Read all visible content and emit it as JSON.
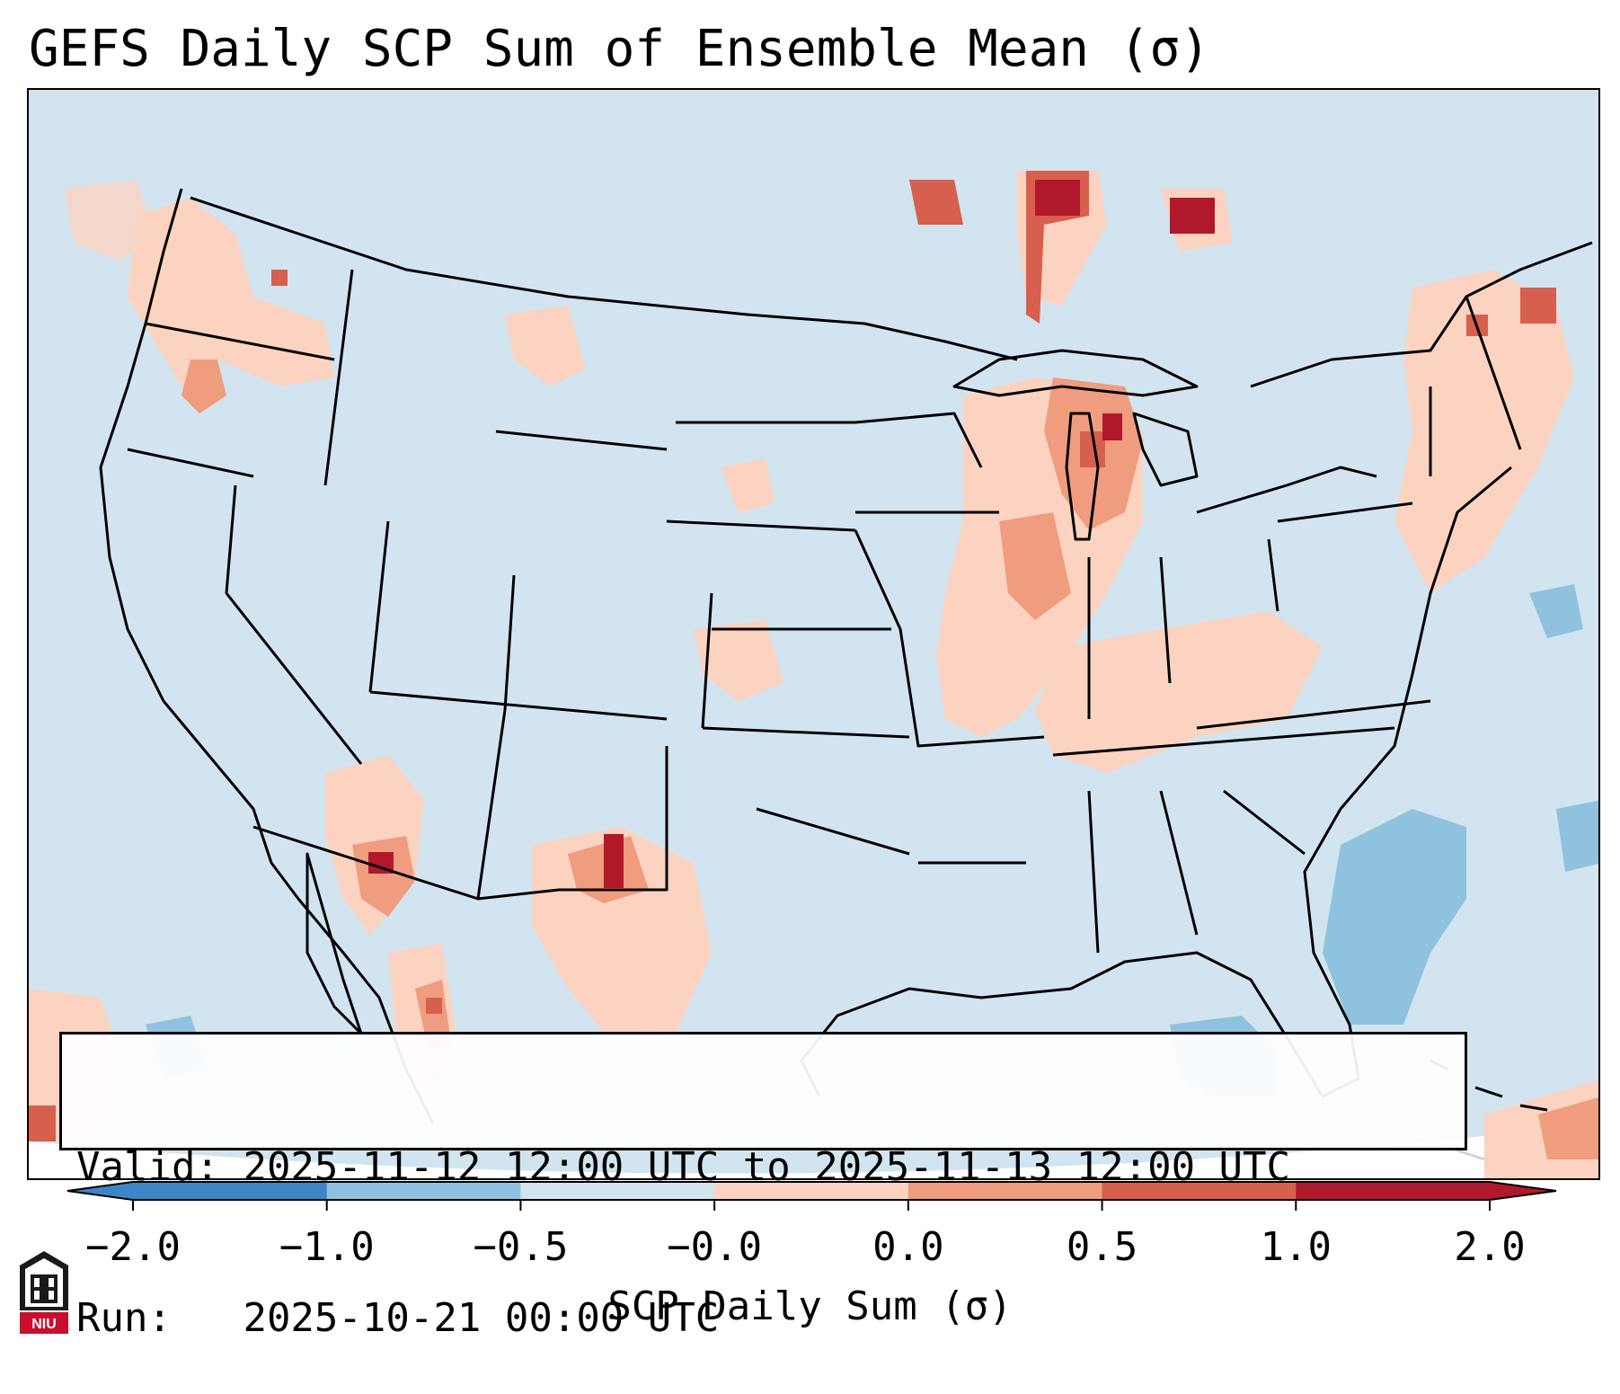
{
  "title": "GEFS Daily SCP Sum of Ensemble Mean (σ)",
  "info": {
    "valid_label": "Valid:",
    "valid_value": "2025-11-12 12:00 UTC to 2025-11-13 12:00 UTC",
    "run_label": "Run:",
    "run_value": "2025-10-21 00:00 UTC"
  },
  "colorbar": {
    "label": "SCP Daily Sum (σ)",
    "tick_labels": [
      "−2.0",
      "−1.0",
      "−0.5",
      "−0.0",
      "0.0",
      "0.5",
      "1.0",
      "2.0"
    ],
    "colors": [
      "#3d85c6",
      "#8fc2de",
      "#d1e4f0",
      "#f6f8fb",
      "#fbd3c0",
      "#ef9c7f",
      "#d6604d",
      "#b2182b"
    ],
    "extend": "both"
  },
  "map": {
    "background_color": "#d1e4f0",
    "outside_color": "#ffffff",
    "border_color": "#000000"
  },
  "logo": {
    "text": "NIU",
    "icon": "niu-logo-icon"
  }
}
